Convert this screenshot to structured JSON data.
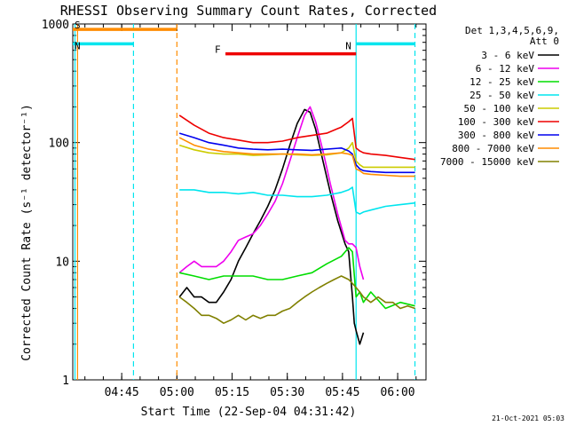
{
  "chart_data": {
    "type": "line",
    "title": "RHESSI Observing Summary Count Rates, Corrected",
    "xlabel": "Start Time (22-Sep-04 04:31:42)",
    "ylabel": "Corrected Count Rate (s⁻¹ detector⁻¹)",
    "yscale": "log",
    "ylim": [
      1,
      1000
    ],
    "xlim_minutes": [
      0,
      96
    ],
    "x_tick_labels": [
      "04:45",
      "05:00",
      "05:15",
      "05:30",
      "05:45",
      "06:00"
    ],
    "x_tick_minutes": [
      13.3,
      28.3,
      43.3,
      58.3,
      73.3,
      88.3
    ],
    "y_tick_labels": [
      "1",
      "10",
      "100",
      "1000"
    ],
    "y_tick_values": [
      1,
      10,
      100,
      1000
    ],
    "legend": {
      "header": [
        "Det 1,3,4,5,6,9,",
        "Att 0"
      ],
      "placement": "right"
    },
    "markers": [
      {
        "label": "S",
        "color": "#ff8c00",
        "y": 900,
        "x_start": 0,
        "x_end": 28.3
      },
      {
        "label": "N",
        "color": "#00e5ee",
        "y": 680,
        "x_start": 0,
        "x_end": 16.5
      },
      {
        "label": "N",
        "color": "#00e5ee",
        "y": 680,
        "x_start": 77,
        "x_end": 93
      },
      {
        "label": "F",
        "color": "#ee0000",
        "y": 560,
        "x_start": 41.5,
        "x_end": 77
      }
    ],
    "vlines": [
      {
        "x": 1.3,
        "color": "#ff8c00",
        "style": "solid"
      },
      {
        "x": 0.6,
        "color": "#00e5ee",
        "style": "solid"
      },
      {
        "x": 16.5,
        "color": "#00e5ee",
        "style": "dashed"
      },
      {
        "x": 28.3,
        "color": "#ff8c00",
        "style": "dashed"
      },
      {
        "x": 77,
        "color": "#00e5ee",
        "style": "solid"
      },
      {
        "x": 93,
        "color": "#00e5ee",
        "style": "dashed"
      }
    ],
    "series": [
      {
        "name": "3 - 6 keV",
        "color": "#000000",
        "x": [
          29,
          31,
          33,
          35,
          37,
          39,
          41,
          43,
          45,
          47,
          49,
          51,
          53,
          55,
          57,
          59,
          61,
          63,
          64.5,
          66,
          68,
          70,
          72,
          74,
          75,
          76,
          76.5,
          77,
          78,
          79
        ],
        "y": [
          5,
          6,
          5,
          5,
          4.5,
          4.5,
          5.5,
          7,
          10,
          13,
          17,
          22,
          29,
          40,
          60,
          95,
          145,
          190,
          180,
          130,
          70,
          38,
          22,
          14,
          12,
          5,
          3,
          2.6,
          2,
          2.5
        ]
      },
      {
        "name": "6 - 12 keV",
        "color": "#ee00ee",
        "x": [
          29,
          31,
          33,
          35,
          37,
          39,
          41,
          43,
          45,
          47,
          49,
          51,
          53,
          55,
          57,
          59,
          61,
          63,
          64.5,
          66,
          68,
          70,
          72,
          74,
          75,
          76,
          77,
          78,
          79
        ],
        "y": [
          8,
          9,
          10,
          9,
          9,
          9,
          10,
          12,
          15,
          16,
          17,
          20,
          25,
          32,
          45,
          70,
          110,
          170,
          200,
          150,
          85,
          45,
          25,
          15,
          14,
          14,
          13,
          9,
          7
        ]
      },
      {
        "name": "12 - 25 keV",
        "color": "#00dd00",
        "x": [
          29,
          33,
          37,
          41,
          45,
          49,
          53,
          57,
          61,
          65,
          69,
          73,
          75,
          76,
          77,
          78,
          79,
          81,
          85,
          89,
          93
        ],
        "y": [
          8,
          7.5,
          7,
          7.5,
          7.5,
          7.5,
          7,
          7,
          7.5,
          8,
          9.5,
          11,
          13,
          12,
          5,
          5.5,
          4.5,
          5.5,
          4,
          4.5,
          4.2
        ]
      },
      {
        "name": "25 - 50 keV",
        "color": "#00e5ee",
        "x": [
          29,
          33,
          37,
          41,
          45,
          49,
          53,
          57,
          61,
          65,
          69,
          73,
          75,
          76,
          77,
          78,
          79,
          81,
          85,
          89,
          93
        ],
        "y": [
          40,
          40,
          38,
          38,
          37,
          38,
          36,
          36,
          35,
          35,
          36,
          38,
          40,
          42,
          26,
          25,
          26,
          27,
          29,
          30,
          31
        ]
      },
      {
        "name": "50 - 100 keV",
        "color": "#cccc00",
        "x": [
          29,
          33,
          37,
          41,
          45,
          49,
          53,
          57,
          61,
          65,
          69,
          73,
          75,
          76,
          77,
          78,
          79,
          81,
          85,
          89,
          93
        ],
        "y": [
          95,
          87,
          82,
          80,
          80,
          78,
          79,
          80,
          79,
          78,
          79,
          82,
          90,
          100,
          70,
          65,
          62,
          62,
          62,
          62,
          62
        ]
      },
      {
        "name": "100 - 300 keV",
        "color": "#ee0000",
        "x": [
          29,
          33,
          37,
          41,
          45,
          49,
          53,
          57,
          61,
          65,
          69,
          73,
          75,
          76,
          77,
          78,
          79,
          81,
          85,
          89,
          93
        ],
        "y": [
          170,
          140,
          120,
          110,
          105,
          100,
          100,
          103,
          110,
          115,
          120,
          135,
          150,
          160,
          90,
          85,
          82,
          80,
          78,
          75,
          72
        ]
      },
      {
        "name": "300 - 800 keV",
        "color": "#0000ee",
        "x": [
          29,
          33,
          37,
          41,
          45,
          49,
          53,
          57,
          61,
          65,
          69,
          73,
          75,
          76,
          77,
          78,
          79,
          81,
          85,
          89,
          93
        ],
        "y": [
          120,
          110,
          100,
          95,
          90,
          88,
          87,
          88,
          87,
          86,
          88,
          90,
          85,
          80,
          65,
          60,
          58,
          57,
          56,
          56,
          56
        ]
      },
      {
        "name": "800 - 7000 keV",
        "color": "#ff8c00",
        "x": [
          29,
          33,
          37,
          41,
          45,
          49,
          53,
          57,
          61,
          65,
          69,
          73,
          75,
          76,
          77,
          78,
          79,
          81,
          85,
          89,
          93
        ],
        "y": [
          110,
          95,
          88,
          84,
          82,
          80,
          80,
          80,
          80,
          79,
          80,
          82,
          80,
          78,
          60,
          58,
          55,
          54,
          53,
          52,
          52
        ]
      },
      {
        "name": "7000 - 15000 keV",
        "color": "#808000",
        "x": [
          29,
          31,
          33,
          35,
          37,
          39,
          41,
          43,
          45,
          47,
          49,
          51,
          53,
          55,
          57,
          59,
          61,
          63,
          65,
          67,
          69,
          71,
          73,
          75,
          76,
          77,
          78,
          79,
          81,
          83,
          85,
          87,
          89,
          91,
          93
        ],
        "y": [
          5,
          4.5,
          4,
          3.5,
          3.5,
          3.3,
          3,
          3.2,
          3.5,
          3.2,
          3.5,
          3.3,
          3.5,
          3.5,
          3.8,
          4,
          4.5,
          5,
          5.5,
          6,
          6.5,
          7,
          7.5,
          7,
          6.5,
          6,
          5.5,
          5,
          4.5,
          5,
          4.5,
          4.5,
          4,
          4.2,
          4
        ]
      }
    ]
  },
  "footer": {
    "timestamp": "21-Oct-2021 05:03"
  }
}
